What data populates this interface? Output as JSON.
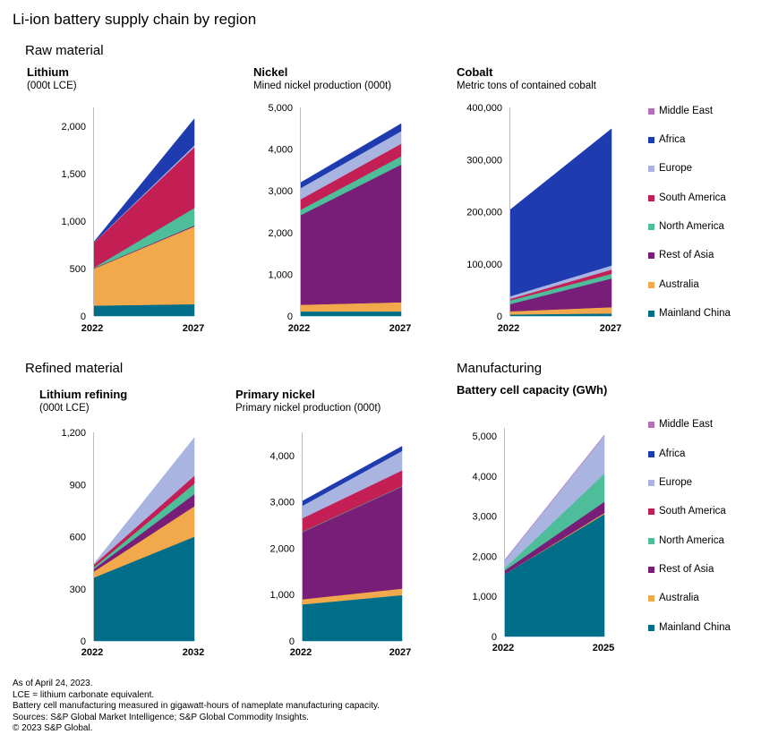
{
  "page": {
    "title": "Li-ion battery supply chain by region",
    "sections": [
      "Raw material",
      "Refined material",
      "Manufacturing"
    ],
    "footnotes": [
      "As of April 24, 2023.",
      "LCE = lithium carbonate equivalent.",
      "Battery cell manufacturing measured in gigawatt-hours of nameplate manufacturing capacity.",
      "Sources: S&P Global Market Intelligence; S&P Global Commodity Insights.",
      "© 2023 S&P Global."
    ]
  },
  "legend": [
    {
      "name": "Middle East",
      "color": "#b46fb6"
    },
    {
      "name": "Africa",
      "color": "#1f3bb0"
    },
    {
      "name": "Europe",
      "color": "#a9b4e1"
    },
    {
      "name": "South America",
      "color": "#c41f55"
    },
    {
      "name": "North America",
      "color": "#4dbd9a"
    },
    {
      "name": "Rest of Asia",
      "color": "#781e79"
    },
    {
      "name": "Australia",
      "color": "#f2a94c"
    },
    {
      "name": "Mainland China",
      "color": "#006e89"
    }
  ],
  "chart_data": [
    {
      "type": "area",
      "title": "Lithium",
      "subtitle": "(000t LCE)",
      "categories": [
        "2022",
        "2027"
      ],
      "ylim": [
        0,
        2200
      ],
      "yticks": [
        0,
        500,
        1000,
        1500,
        2000
      ],
      "yticklabels": [
        "0",
        "500",
        "1,000",
        "1,500",
        "2,000"
      ],
      "series": [
        {
          "name": "Mainland China",
          "values": [
            110,
            125
          ]
        },
        {
          "name": "Australia",
          "values": [
            390,
            820
          ]
        },
        {
          "name": "Rest of Asia",
          "values": [
            5,
            10
          ]
        },
        {
          "name": "North America",
          "values": [
            5,
            185
          ]
        },
        {
          "name": "South America",
          "values": [
            265,
            640
          ]
        },
        {
          "name": "Europe",
          "values": [
            3,
            20
          ]
        },
        {
          "name": "Africa",
          "values": [
            5,
            280
          ]
        },
        {
          "name": "Middle East",
          "values": [
            0,
            0
          ]
        }
      ]
    },
    {
      "type": "area",
      "title": "Nickel",
      "subtitle": "Mined nickel production (000t)",
      "categories": [
        "2022",
        "2027"
      ],
      "ylim": [
        0,
        5000
      ],
      "yticks": [
        0,
        1000,
        2000,
        3000,
        4000,
        5000
      ],
      "yticklabels": [
        "0",
        "1,000",
        "2,000",
        "3,000",
        "4,000",
        "5,000"
      ],
      "series": [
        {
          "name": "Mainland China",
          "values": [
            110,
            110
          ]
        },
        {
          "name": "Australia",
          "values": [
            160,
            220
          ]
        },
        {
          "name": "Rest of Asia",
          "values": [
            2150,
            3300
          ]
        },
        {
          "name": "North America",
          "values": [
            130,
            200
          ]
        },
        {
          "name": "South America",
          "values": [
            250,
            300
          ]
        },
        {
          "name": "Europe",
          "values": [
            270,
            300
          ]
        },
        {
          "name": "Africa",
          "values": [
            130,
            180
          ]
        },
        {
          "name": "Middle East",
          "values": [
            0,
            0
          ]
        }
      ]
    },
    {
      "type": "area",
      "title": "Cobalt",
      "subtitle": "Metric tons of contained cobalt",
      "categories": [
        "2022",
        "2027"
      ],
      "ylim": [
        0,
        400000
      ],
      "yticks": [
        0,
        100000,
        200000,
        300000,
        400000
      ],
      "yticklabels": [
        "0",
        "100,000",
        "200,000",
        "300,000",
        "400,000"
      ],
      "series": [
        {
          "name": "Mainland China",
          "values": [
            3000,
            5000
          ]
        },
        {
          "name": "Australia",
          "values": [
            6000,
            12000
          ]
        },
        {
          "name": "Rest of Asia",
          "values": [
            14000,
            55000
          ]
        },
        {
          "name": "North America",
          "values": [
            7000,
            9000
          ]
        },
        {
          "name": "South America",
          "values": [
            3000,
            8000
          ]
        },
        {
          "name": "Europe",
          "values": [
            5000,
            8000
          ]
        },
        {
          "name": "Africa",
          "values": [
            166000,
            262000
          ]
        },
        {
          "name": "Middle East",
          "values": [
            0,
            0
          ]
        }
      ]
    },
    {
      "type": "area",
      "title": "Lithium refining",
      "subtitle": "(000t LCE)",
      "categories": [
        "2022",
        "2032"
      ],
      "ylim": [
        0,
        1200
      ],
      "yticks": [
        0,
        300,
        600,
        900,
        1200
      ],
      "yticklabels": [
        "0",
        "300",
        "600",
        "900",
        "1,200"
      ],
      "series": [
        {
          "name": "Mainland China",
          "values": [
            365,
            600
          ]
        },
        {
          "name": "Australia",
          "values": [
            35,
            175
          ]
        },
        {
          "name": "Rest of Asia",
          "values": [
            15,
            70
          ]
        },
        {
          "name": "North America",
          "values": [
            10,
            60
          ]
        },
        {
          "name": "South America",
          "values": [
            15,
            45
          ]
        },
        {
          "name": "Europe",
          "values": [
            5,
            220
          ]
        },
        {
          "name": "Africa",
          "values": [
            0,
            0
          ]
        },
        {
          "name": "Middle East",
          "values": [
            0,
            0
          ]
        }
      ]
    },
    {
      "type": "area",
      "title": "Primary nickel",
      "subtitle": "Primary nickel production (000t)",
      "categories": [
        "2022",
        "2027"
      ],
      "ylim": [
        0,
        4500
      ],
      "yticks": [
        0,
        1000,
        2000,
        3000,
        4000
      ],
      "yticklabels": [
        "0",
        "1,000",
        "2,000",
        "3,000",
        "4,000"
      ],
      "series": [
        {
          "name": "Mainland China",
          "values": [
            790,
            990
          ]
        },
        {
          "name": "Australia",
          "values": [
            110,
            140
          ]
        },
        {
          "name": "Rest of Asia",
          "values": [
            1450,
            2200
          ]
        },
        {
          "name": "North America",
          "values": [
            10,
            10
          ]
        },
        {
          "name": "South America",
          "values": [
            290,
            340
          ]
        },
        {
          "name": "Europe",
          "values": [
            270,
            420
          ]
        },
        {
          "name": "Africa",
          "values": [
            100,
            100
          ]
        },
        {
          "name": "Middle East",
          "values": [
            0,
            0
          ]
        }
      ]
    },
    {
      "type": "area",
      "title": "Battery cell capacity (GWh)",
      "subtitle": "",
      "categories": [
        "2022",
        "2025"
      ],
      "ylim": [
        0,
        5200
      ],
      "yticks": [
        0,
        1000,
        2000,
        3000,
        4000,
        5000
      ],
      "yticklabels": [
        "0",
        "1,000",
        "2,000",
        "3,000",
        "4,000",
        "5,000"
      ],
      "series": [
        {
          "name": "Mainland China",
          "values": [
            1560,
            3050
          ]
        },
        {
          "name": "Australia",
          "values": [
            0,
            30
          ]
        },
        {
          "name": "Rest of Asia",
          "values": [
            90,
            280
          ]
        },
        {
          "name": "North America",
          "values": [
            60,
            700
          ]
        },
        {
          "name": "South America",
          "values": [
            0,
            0
          ]
        },
        {
          "name": "Europe",
          "values": [
            200,
            950
          ]
        },
        {
          "name": "Africa",
          "values": [
            0,
            0
          ]
        },
        {
          "name": "Middle East",
          "values": [
            5,
            10
          ]
        }
      ]
    }
  ]
}
